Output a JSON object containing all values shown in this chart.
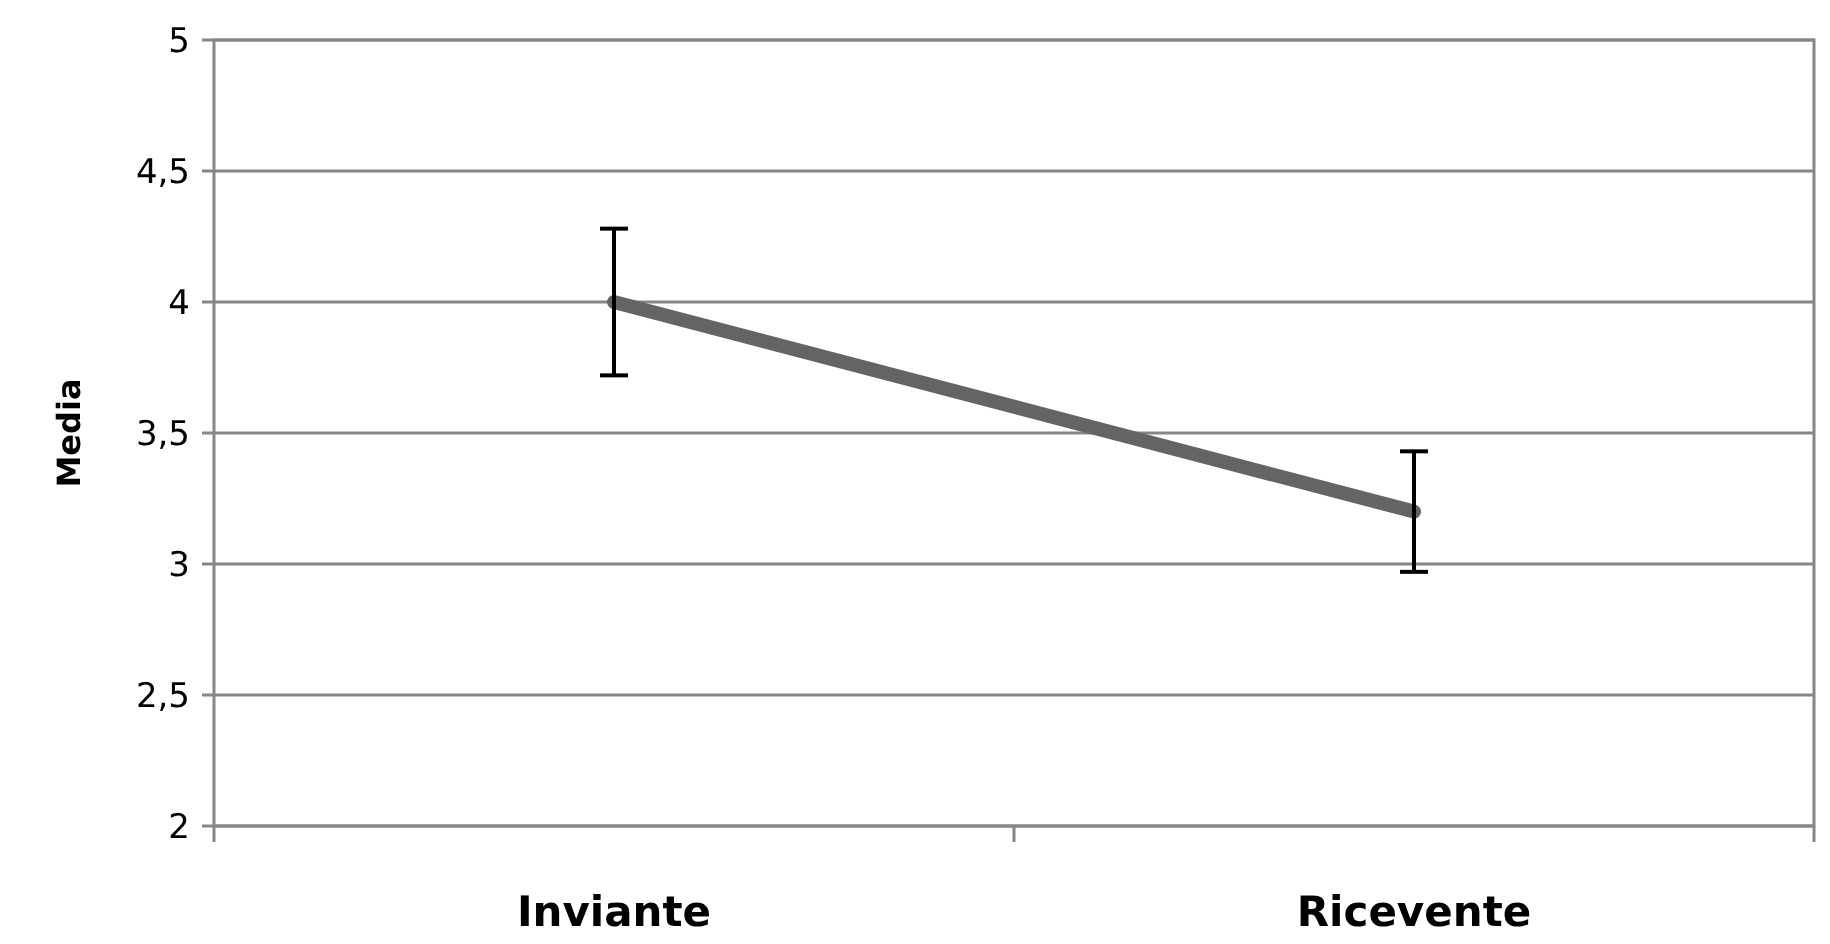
{
  "chart_data": {
    "type": "line",
    "ylabel": "Media",
    "categories": [
      "Inviante",
      "Ricevente"
    ],
    "series": [
      {
        "color": "#646464",
        "values": [
          4,
          3.2
        ],
        "errors": [
          0.28,
          0.23
        ]
      }
    ],
    "ylim": [
      2,
      5
    ],
    "yticks": [
      {
        "value": 2,
        "label": "2"
      },
      {
        "value": 2.5,
        "label": "2,5"
      },
      {
        "value": 3,
        "label": "3"
      },
      {
        "value": 3.5,
        "label": "3,5"
      },
      {
        "value": 4,
        "label": "4"
      },
      {
        "value": 4.5,
        "label": "4,5"
      },
      {
        "value": 5,
        "label": "5"
      }
    ],
    "grid": "y",
    "marker": "none",
    "line_style": "solid"
  }
}
